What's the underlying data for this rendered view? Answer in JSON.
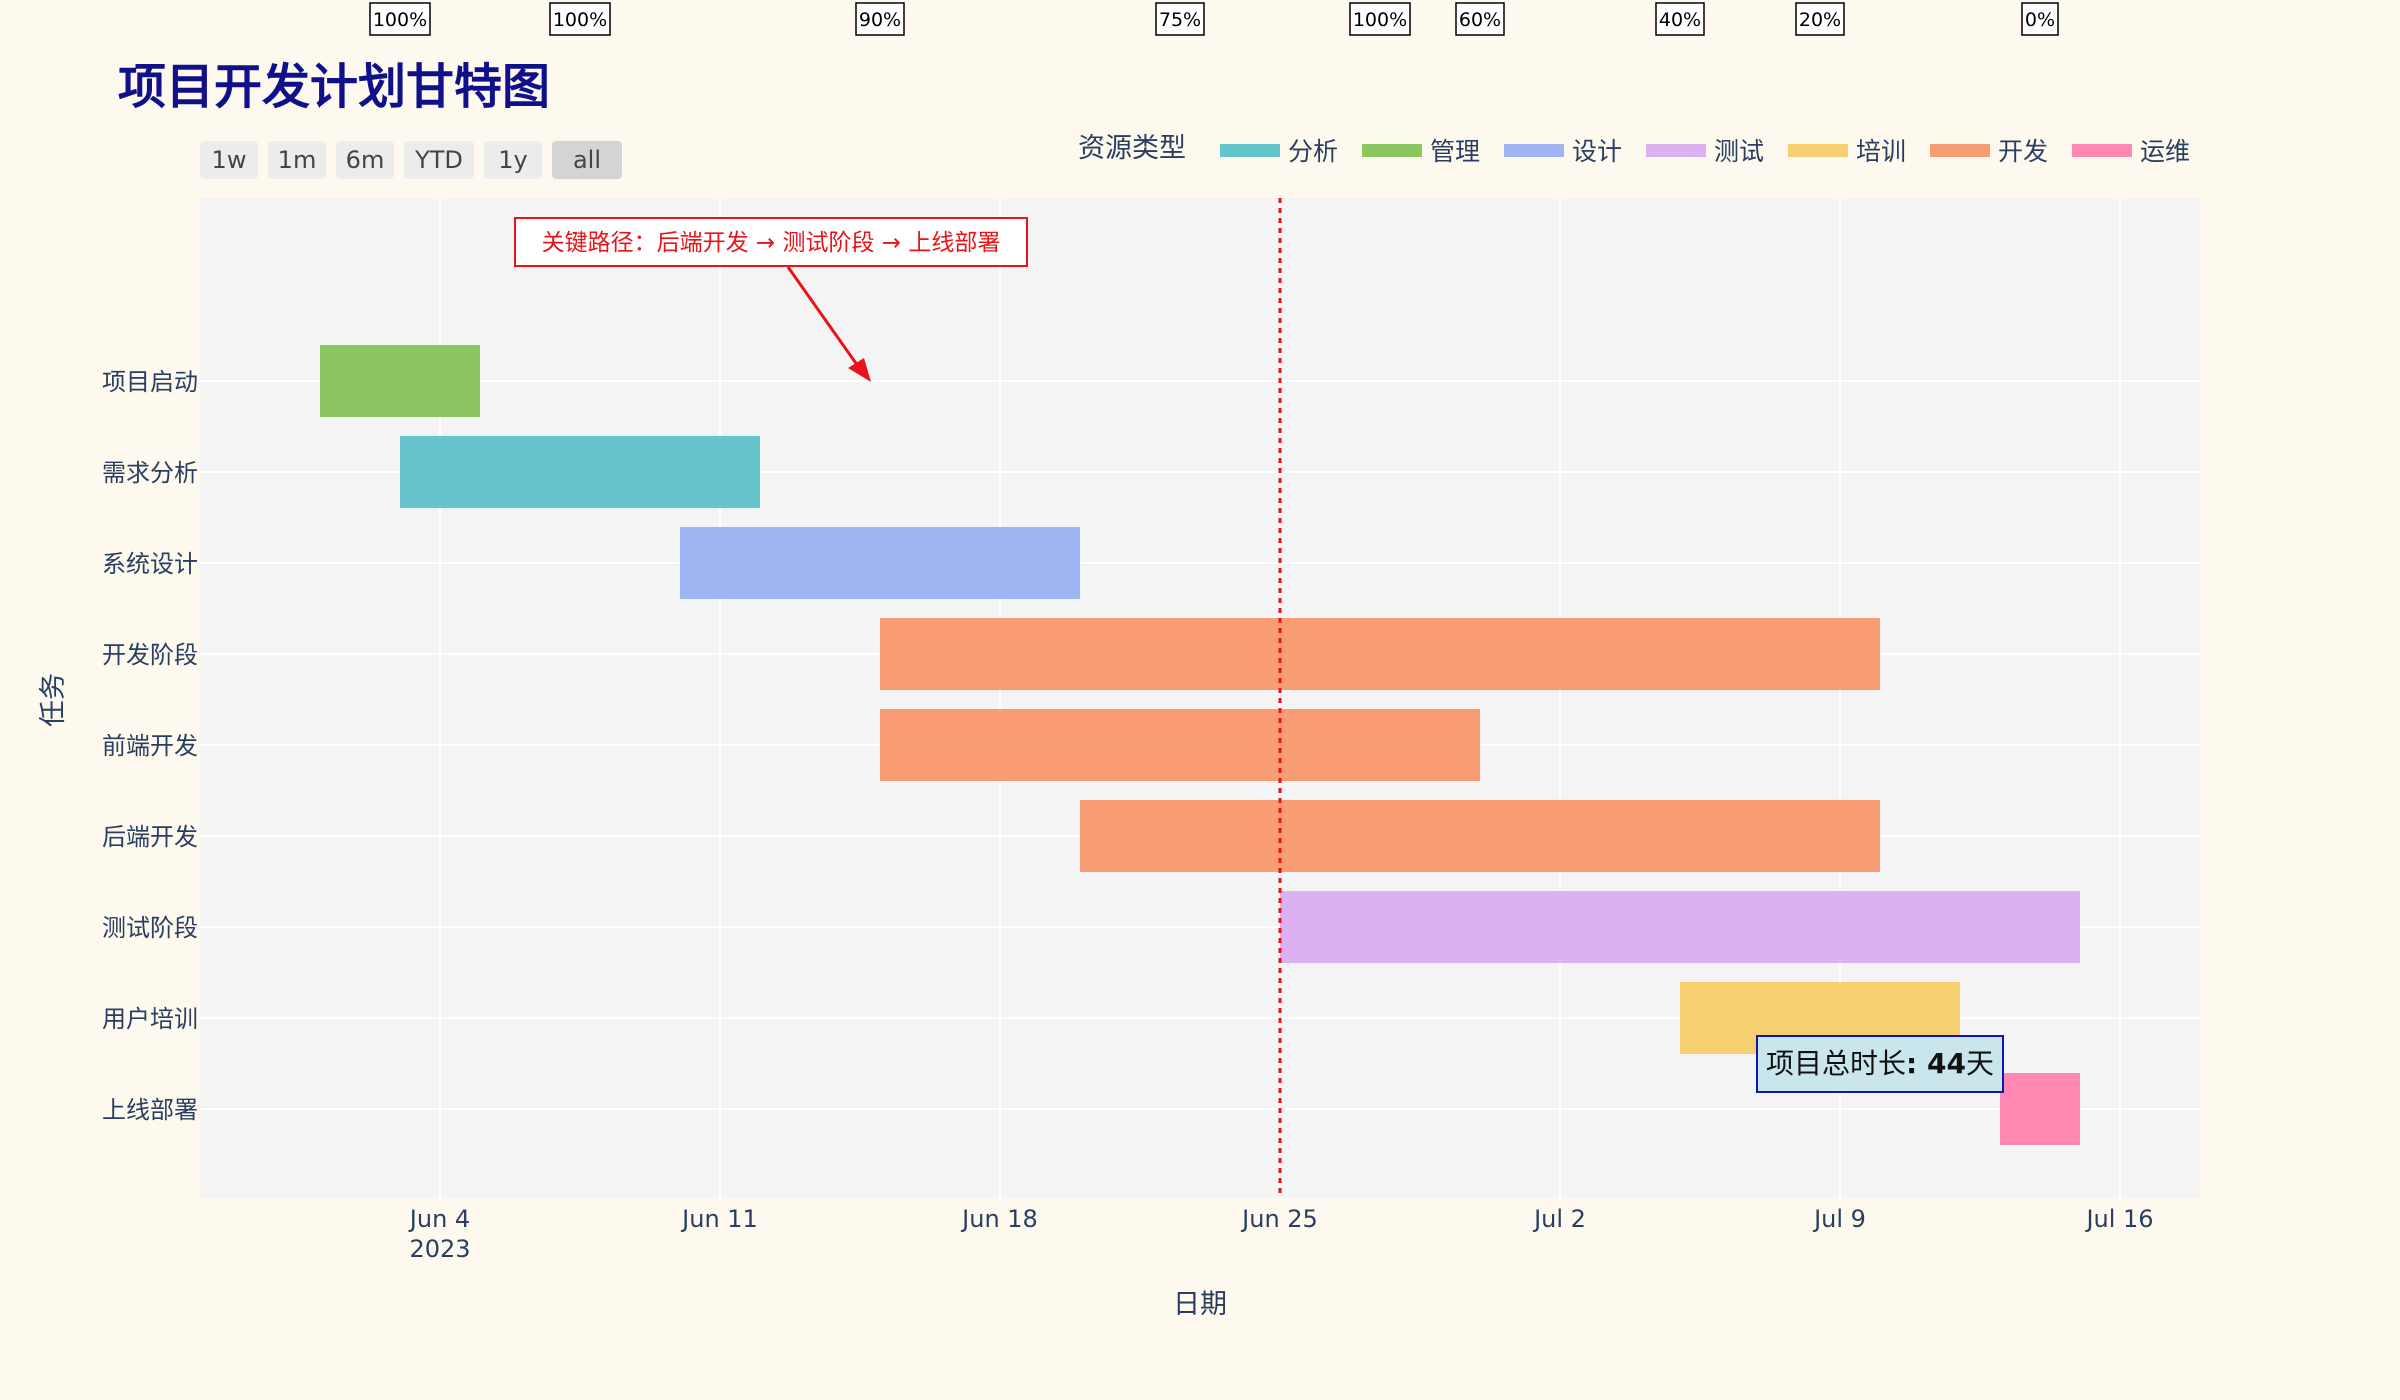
{
  "chart_data": {
    "type": "gantt",
    "title": "项目开发计划甘特图",
    "xlabel": "日期",
    "ylabel": "任务",
    "x_range": [
      "2023-05-29",
      "2023-07-18"
    ],
    "x_ticks": [
      {
        "date": "2023-06-04",
        "label": "Jun 4",
        "sublabel": "2023"
      },
      {
        "date": "2023-06-11",
        "label": "Jun 11",
        "sublabel": ""
      },
      {
        "date": "2023-06-18",
        "label": "Jun 18",
        "sublabel": ""
      },
      {
        "date": "2023-06-25",
        "label": "Jun 25",
        "sublabel": ""
      },
      {
        "date": "2023-07-02",
        "label": "Jul 2",
        "sublabel": ""
      },
      {
        "date": "2023-07-09",
        "label": "Jul 9",
        "sublabel": ""
      },
      {
        "date": "2023-07-16",
        "label": "Jul 16",
        "sublabel": ""
      }
    ],
    "today_line": "2023-06-25",
    "legend_title": "资源类型",
    "legend": [
      {
        "name": "分析",
        "color": "#66c5cc"
      },
      {
        "name": "管理",
        "color": "#8bc660"
      },
      {
        "name": "设计",
        "color": "#a0b6f3"
      },
      {
        "name": "测试",
        "color": "#dbb1f2"
      },
      {
        "name": "培训",
        "color": "#f6cf71"
      },
      {
        "name": "开发",
        "color": "#f89c74"
      },
      {
        "name": "运维",
        "color": "#fe88b1"
      }
    ],
    "tasks": [
      {
        "name": "项目启动",
        "start": "2023-06-01",
        "end": "2023-06-05",
        "resource": "管理",
        "progress": "100%"
      },
      {
        "name": "需求分析",
        "start": "2023-06-03",
        "end": "2023-06-12",
        "resource": "分析",
        "progress": "100%"
      },
      {
        "name": "系统设计",
        "start": "2023-06-10",
        "end": "2023-06-20",
        "resource": "设计",
        "progress": "90%"
      },
      {
        "name": "开发阶段",
        "start": "2023-06-15",
        "end": "2023-07-10",
        "resource": "开发",
        "progress": "100%"
      },
      {
        "name": "前端开发",
        "start": "2023-06-15",
        "end": "2023-06-30",
        "resource": "开发",
        "progress": "75%"
      },
      {
        "name": "后端开发",
        "start": "2023-06-20",
        "end": "2023-07-10",
        "resource": "开发",
        "progress": "60%"
      },
      {
        "name": "测试阶段",
        "start": "2023-06-25",
        "end": "2023-07-15",
        "resource": "测试",
        "progress": "40%"
      },
      {
        "name": "用户培训",
        "start": "2023-07-05",
        "end": "2023-07-12",
        "resource": "培训",
        "progress": "20%"
      },
      {
        "name": "上线部署",
        "start": "2023-07-13",
        "end": "2023-07-15",
        "resource": "运维",
        "progress": "0%"
      }
    ],
    "annotations": {
      "critical_path": "关键路径：后端开发 → 测试阶段 → 上线部署",
      "total_prefix": "项目总时长",
      "total_value": ": 44",
      "total_suffix": "天"
    }
  },
  "range_buttons": [
    "1w",
    "1m",
    "6m",
    "YTD",
    "1y",
    "all"
  ],
  "active_range": "all",
  "colors": {
    "background": "#fdf9ee",
    "plot_bg": "#f4f4f4",
    "title": "#10108a",
    "axis_text": "#2a3f5f",
    "today_line": "#e8141a",
    "annotation": "#e8141a"
  }
}
